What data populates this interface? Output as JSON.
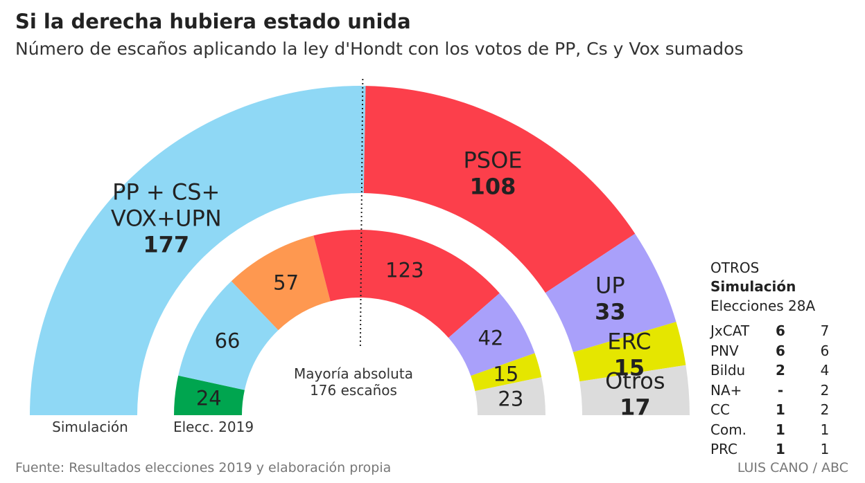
{
  "title": "Si la derecha hubiera estado unida",
  "subtitle": "Número de escaños aplicando la ley d'Hondt con los votos de PP, Cs y Vox sumados",
  "chart_data": [
    {
      "type": "semi-donut",
      "label": "Simulación",
      "categories": [
        "PP + CS+ VOX+UPN",
        "PSOE",
        "UP",
        "ERC",
        "Otros"
      ],
      "values": [
        177,
        108,
        33,
        15,
        17
      ],
      "colors": [
        "#8fd8f5",
        "#fc3f4b",
        "#a9a0fa",
        "#e5e600",
        "#dcdcdc"
      ]
    },
    {
      "type": "semi-donut",
      "label": "Elecc. 2019",
      "categories": [
        null,
        null,
        null,
        null,
        null,
        null,
        null
      ],
      "values": [
        24,
        66,
        57,
        123,
        42,
        15,
        23
      ],
      "colors": [
        "#00a54f",
        "#8fd8f5",
        "#fe9850",
        "#fc3f4b",
        "#a9a0fa",
        "#e5e600",
        "#dcdcdc"
      ]
    }
  ],
  "majority": 176,
  "majority_label": "Mayoría absoluta 176 escaños",
  "table": {
    "title": "OTROS",
    "col1": "Simulación",
    "col2": "Elecciones 28A",
    "rows": [
      [
        "JxCAT",
        6,
        7
      ],
      [
        "PNV",
        6,
        6
      ],
      [
        "Bildu",
        2,
        4
      ],
      [
        "NA+",
        "-",
        2
      ],
      [
        "CC",
        1,
        2
      ],
      [
        "Com.",
        1,
        1
      ],
      [
        "PRC",
        1,
        1
      ]
    ]
  },
  "source": "Fuente: Resultados elecciones 2019 y elaboración propia",
  "credit": "LUIS CANO / ABC"
}
